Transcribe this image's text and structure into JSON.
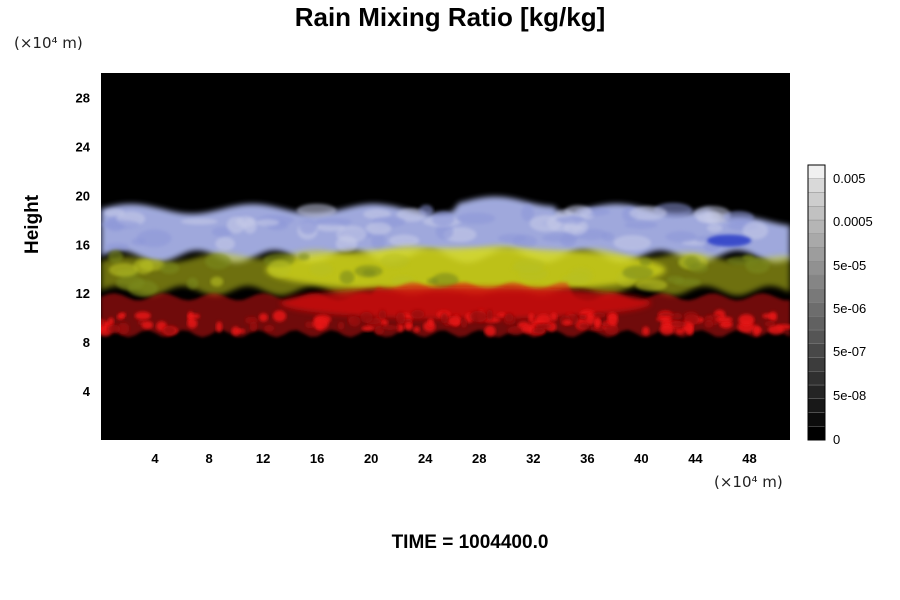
{
  "chart_data": {
    "type": "heatmap",
    "title": "Rain Mixing Ratio [kg/kg]",
    "ylabel": "Height",
    "xunit": "(×10⁴ m)",
    "yunit": "(×10⁴ m)",
    "footer": "TIME = 1004400.0",
    "xlim": [
      0,
      51
    ],
    "ylim": [
      0,
      30
    ],
    "x_ticks": [
      4,
      8,
      12,
      16,
      20,
      24,
      28,
      32,
      36,
      40,
      44,
      48
    ],
    "y_ticks": [
      4,
      8,
      12,
      16,
      20,
      24,
      28
    ],
    "background_color": "#000000",
    "layers": [
      {
        "name": "red band",
        "y_range": [
          8.5,
          13
        ],
        "color": "#e01414"
      },
      {
        "name": "yellow band",
        "y_range": [
          12,
          16
        ],
        "color": "#c8cc1c"
      },
      {
        "name": "lavender band",
        "y_range": [
          15,
          19.5
        ],
        "color": "#a8b2e8"
      }
    ],
    "colorbar": {
      "labels": [
        "0.005",
        "0.0005",
        "5e-05",
        "5e-06",
        "5e-07",
        "5e-08",
        "0"
      ],
      "levels": 20,
      "scale": "log"
    }
  }
}
